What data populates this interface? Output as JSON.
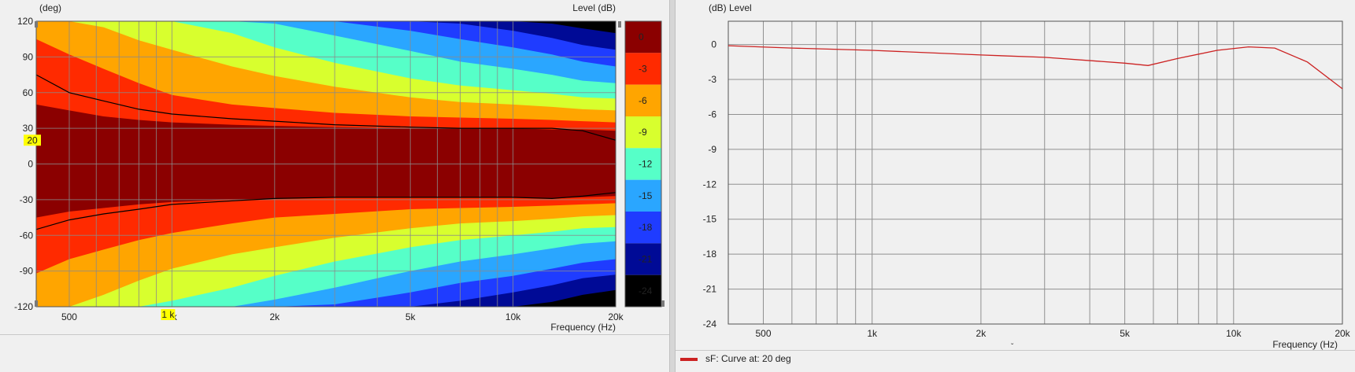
{
  "chart_data": [
    {
      "type": "heatmap",
      "xlabel": "Frequency  (Hz)",
      "ylabel": "(deg)",
      "colorbar_label": "Level  (dB)",
      "x_scale": "log",
      "xlim": [
        400,
        20000
      ],
      "ylim": [
        -120,
        120
      ],
      "x_ticks": [
        500,
        1000,
        2000,
        5000,
        10000,
        20000
      ],
      "x_tick_labels": [
        "500",
        "1k",
        "2k",
        "5k",
        "10k",
        "20k"
      ],
      "y_ticks": [
        120,
        90,
        60,
        30,
        0,
        -30,
        -60,
        -90,
        -120
      ],
      "y_tick_labels": [
        "120",
        "90",
        "60",
        "30",
        "0",
        "-30",
        "-60",
        "-90",
        "-120"
      ],
      "colorbar_levels": [
        0,
        -3,
        -6,
        -9,
        -12,
        -15,
        -18,
        -21,
        -24
      ],
      "colorbar_tick_labels": [
        "0",
        "-3",
        "-6",
        "-9",
        "-12",
        "-15",
        "-18",
        "-21",
        "-24"
      ],
      "colorbar_colors": [
        "#8b0000",
        "#ff2a00",
        "#ffa500",
        "#d8ff2e",
        "#56ffc8",
        "#2aa6ff",
        "#1f3cff",
        "#000a96",
        "#000000"
      ],
      "contour_freqs": [
        400,
        500,
        630,
        800,
        1000,
        1500,
        2000,
        3000,
        5000,
        7000,
        10000,
        13000,
        16000,
        20000
      ],
      "contour_upper": [
        {
          "level": -3,
          "angles": [
            50,
            45,
            40,
            37,
            35,
            33,
            32,
            31,
            30,
            30,
            30,
            29,
            29,
            28
          ]
        },
        {
          "level": -6,
          "angles": [
            105,
            92,
            80,
            68,
            58,
            50,
            47,
            43,
            40,
            39,
            38,
            37,
            36,
            35
          ]
        },
        {
          "level": -9,
          "angles": [
            120,
            120,
            115,
            104,
            96,
            82,
            74,
            65,
            56,
            52,
            50,
            48,
            46,
            45
          ]
        },
        {
          "level": -12,
          "angles": [
            120,
            120,
            120,
            120,
            120,
            110,
            98,
            85,
            72,
            66,
            62,
            59,
            56,
            55
          ]
        },
        {
          "level": -15,
          "angles": [
            120,
            120,
            120,
            120,
            120,
            120,
            118,
            108,
            95,
            86,
            80,
            75,
            70,
            68
          ]
        },
        {
          "level": -18,
          "angles": [
            120,
            120,
            120,
            120,
            120,
            120,
            120,
            120,
            112,
            105,
            98,
            92,
            86,
            82
          ]
        },
        {
          "level": -21,
          "angles": [
            120,
            120,
            120,
            120,
            120,
            120,
            120,
            120,
            120,
            118,
            112,
            106,
            100,
            96
          ]
        },
        {
          "level": -24,
          "angles": [
            120,
            120,
            120,
            120,
            120,
            120,
            120,
            120,
            120,
            120,
            120,
            118,
            114,
            110
          ]
        }
      ],
      "contour_lower": [
        {
          "level": -3,
          "angles": [
            -45,
            -40,
            -37,
            -34,
            -32,
            -30,
            -29,
            -28,
            -28,
            -28,
            -28,
            -29,
            -28,
            -27
          ]
        },
        {
          "level": -6,
          "angles": [
            -92,
            -80,
            -72,
            -64,
            -58,
            -50,
            -45,
            -42,
            -38,
            -37,
            -36,
            -35,
            -34,
            -33
          ]
        },
        {
          "level": -9,
          "angles": [
            -120,
            -120,
            -110,
            -98,
            -88,
            -76,
            -70,
            -62,
            -54,
            -50,
            -48,
            -46,
            -44,
            -43
          ]
        },
        {
          "level": -12,
          "angles": [
            -120,
            -120,
            -120,
            -120,
            -115,
            -104,
            -94,
            -82,
            -70,
            -64,
            -60,
            -57,
            -54,
            -53
          ]
        },
        {
          "level": -15,
          "angles": [
            -120,
            -120,
            -120,
            -120,
            -120,
            -120,
            -114,
            -104,
            -90,
            -82,
            -76,
            -71,
            -67,
            -65
          ]
        },
        {
          "level": -18,
          "angles": [
            -120,
            -120,
            -120,
            -120,
            -120,
            -120,
            -120,
            -118,
            -108,
            -100,
            -94,
            -88,
            -83,
            -80
          ]
        },
        {
          "level": -21,
          "angles": [
            -120,
            -120,
            -120,
            -120,
            -120,
            -120,
            -120,
            -120,
            -120,
            -115,
            -108,
            -102,
            -96,
            -93
          ]
        },
        {
          "level": -24,
          "angles": [
            -120,
            -120,
            -120,
            -120,
            -120,
            -120,
            -120,
            -120,
            -120,
            -120,
            -120,
            -116,
            -110,
            -106
          ]
        }
      ],
      "black_curves": [
        {
          "freqs": [
            400,
            500,
            630,
            800,
            1000,
            1500,
            2000,
            3000,
            5000,
            7000,
            10000,
            13000,
            16000,
            20000
          ],
          "angles": [
            75,
            60,
            53,
            46,
            42,
            38,
            36,
            33,
            31,
            30,
            30,
            30,
            28,
            20
          ]
        },
        {
          "freqs": [
            400,
            500,
            630,
            800,
            1000,
            1500,
            2000,
            3000,
            5000,
            7000,
            10000,
            13000,
            16000,
            20000
          ],
          "angles": [
            -55,
            -47,
            -42,
            -38,
            -34,
            -31,
            -29,
            -28,
            -28,
            -28,
            -28,
            -29,
            -27,
            -24
          ]
        }
      ],
      "markers": [
        {
          "axis": "y",
          "value": 20,
          "label": "20"
        },
        {
          "axis": "x",
          "value": 1000,
          "label": "1 k"
        }
      ]
    },
    {
      "type": "line",
      "xlabel": "Frequency  (Hz)",
      "ylabel": "(dB)  Level",
      "x_scale": "log",
      "xlim": [
        400,
        20000
      ],
      "ylim": [
        -24,
        2
      ],
      "x_ticks": [
        500,
        1000,
        2000,
        5000,
        10000,
        20000
      ],
      "x_tick_labels": [
        "500",
        "1k",
        "2k",
        "5k",
        "10k",
        "20k"
      ],
      "y_ticks": [
        0,
        -3,
        -6,
        -9,
        -12,
        -15,
        -18,
        -21,
        -24
      ],
      "y_tick_labels": [
        "0",
        "-3",
        "-6",
        "-9",
        "-12",
        "-15",
        "-18",
        "-21",
        "-24"
      ],
      "grid": true,
      "legend": "bottom-left",
      "series": [
        {
          "name": "sF: Curve at: 20 deg",
          "color": "#cc2222",
          "x": [
            400,
            600,
            1000,
            2000,
            3000,
            5000,
            5800,
            7000,
            9000,
            11000,
            13000,
            16000,
            20000
          ],
          "y": [
            -0.1,
            -0.3,
            -0.5,
            -0.9,
            -1.1,
            -1.6,
            -1.8,
            -1.2,
            -0.5,
            -0.2,
            -0.3,
            -1.5,
            -3.8
          ]
        }
      ]
    }
  ],
  "colors": {
    "grid": "#808080",
    "plot_bg": "#f0f0f0",
    "marker_bg": "#ffff00"
  }
}
